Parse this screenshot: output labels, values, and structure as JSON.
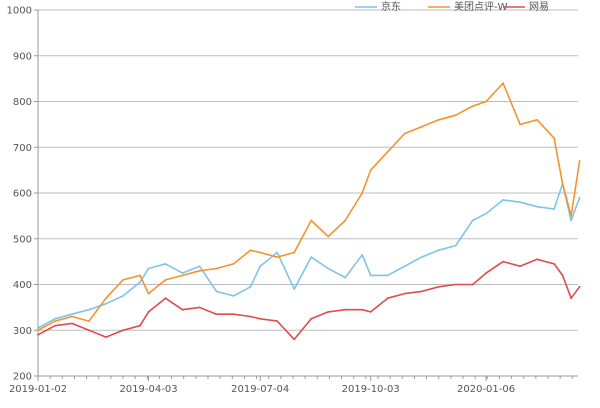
{
  "chart_data": {
    "type": "line",
    "title": "",
    "xlabel": "",
    "ylabel": "",
    "ylim": [
      200,
      1000
    ],
    "yticks": [
      200,
      300,
      400,
      500,
      600,
      700,
      800,
      900,
      1000
    ],
    "xticks": [
      "2019-01-02",
      "2019-04-03",
      "2019-07-04",
      "2019-10-03",
      "2020-01-06"
    ],
    "grid": true,
    "legend_position": "top-right",
    "x": [
      "2019-01-02",
      "2019-01-16",
      "2019-01-30",
      "2019-02-13",
      "2019-02-27",
      "2019-03-13",
      "2019-03-27",
      "2019-04-03",
      "2019-04-17",
      "2019-05-01",
      "2019-05-15",
      "2019-05-29",
      "2019-06-12",
      "2019-06-26",
      "2019-07-04",
      "2019-07-18",
      "2019-08-01",
      "2019-08-15",
      "2019-08-29",
      "2019-09-12",
      "2019-09-26",
      "2019-10-03",
      "2019-10-17",
      "2019-10-31",
      "2019-11-14",
      "2019-11-28",
      "2019-12-12",
      "2019-12-26",
      "2020-01-06",
      "2020-01-20",
      "2020-02-03",
      "2020-02-17",
      "2020-03-02",
      "2020-03-09",
      "2020-03-16",
      "2020-03-23"
    ],
    "series": [
      {
        "name": "京东",
        "color": "#7cc4ea",
        "values": [
          305,
          325,
          335,
          345,
          358,
          375,
          405,
          435,
          445,
          425,
          440,
          385,
          375,
          395,
          440,
          470,
          390,
          460,
          435,
          415,
          465,
          420,
          420,
          440,
          460,
          475,
          485,
          540,
          555,
          585,
          580,
          570,
          565,
          620,
          540,
          590
        ]
      },
      {
        "name": "美团点评-W",
        "color": "#f5922f",
        "values": [
          300,
          320,
          330,
          320,
          370,
          410,
          420,
          380,
          410,
          420,
          430,
          435,
          445,
          475,
          470,
          460,
          470,
          540,
          505,
          540,
          600,
          650,
          690,
          730,
          745,
          760,
          770,
          790,
          800,
          840,
          750,
          760,
          720,
          620,
          550,
          670
        ]
      },
      {
        "name": "网易",
        "color": "#e04b4b",
        "values": [
          290,
          310,
          315,
          300,
          285,
          300,
          310,
          340,
          370,
          345,
          350,
          335,
          335,
          330,
          325,
          320,
          280,
          325,
          340,
          345,
          345,
          340,
          370,
          380,
          385,
          395,
          400,
          400,
          425,
          450,
          440,
          455,
          445,
          420,
          370,
          395
        ]
      }
    ]
  }
}
